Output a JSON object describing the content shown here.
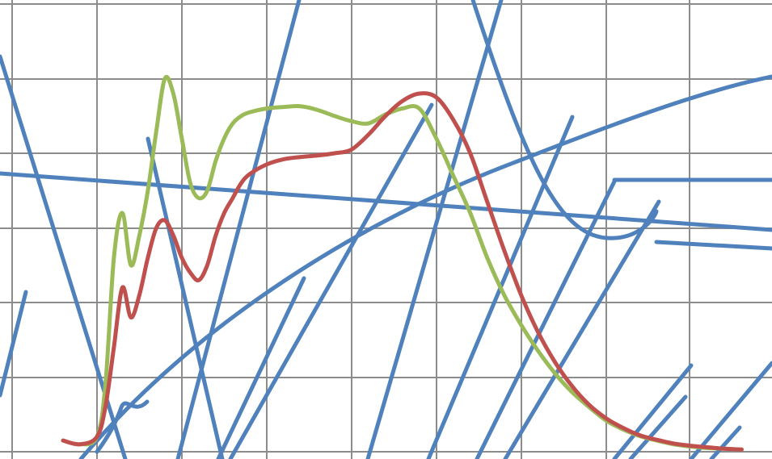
{
  "chart_data": {
    "type": "line",
    "grid": true,
    "legend": "none",
    "title": "",
    "xlabel": "",
    "ylabel": "",
    "xlim": [
      0,
      9.1
    ],
    "ylim": [
      0,
      6
    ],
    "colors": {
      "grid": "#8c8c8c",
      "green": "#9bbb59",
      "red": "#c0504d",
      "blue": "#4f81bd"
    },
    "series": [
      {
        "color": "#9bbb59",
        "x": [
          0.6,
          0.8,
          1.0,
          1.1,
          1.2,
          1.3,
          1.4,
          1.5,
          1.6,
          1.7,
          1.8,
          1.9,
          2.0,
          2.1,
          2.2,
          2.3,
          2.4,
          2.5,
          2.6,
          2.7,
          2.8,
          3.0,
          3.2,
          3.4,
          3.6,
          3.8,
          4.0,
          4.2,
          4.4,
          4.6,
          4.8,
          5.0,
          5.2,
          5.4,
          5.6,
          5.8,
          6.0,
          6.2,
          6.4,
          6.6,
          6.8,
          7.0,
          7.2,
          7.4,
          7.6,
          7.8,
          8.0,
          8.2,
          8.4,
          8.6
        ],
        "y": [
          0.15,
          0.1,
          0.2,
          0.9,
          2.6,
          3.2,
          2.5,
          2.9,
          3.5,
          4.3,
          5.0,
          4.8,
          4.2,
          3.6,
          3.4,
          3.5,
          3.9,
          4.2,
          4.4,
          4.5,
          4.55,
          4.6,
          4.62,
          4.63,
          4.58,
          4.5,
          4.43,
          4.4,
          4.52,
          4.6,
          4.6,
          4.2,
          3.7,
          3.2,
          2.6,
          2.1,
          1.7,
          1.35,
          1.05,
          0.8,
          0.6,
          0.42,
          0.3,
          0.21,
          0.15,
          0.1,
          0.07,
          0.05,
          0.04,
          0.03
        ]
      },
      {
        "color": "#c0504d",
        "x": [
          0.6,
          0.8,
          1.0,
          1.1,
          1.2,
          1.3,
          1.4,
          1.5,
          1.6,
          1.7,
          1.8,
          1.9,
          2.0,
          2.1,
          2.2,
          2.3,
          2.4,
          2.5,
          2.6,
          2.7,
          2.8,
          3.0,
          3.2,
          3.4,
          3.6,
          3.8,
          4.0,
          4.2,
          4.4,
          4.6,
          4.8,
          5.0,
          5.2,
          5.4,
          5.6,
          5.8,
          6.0,
          6.2,
          6.4,
          6.6,
          6.8,
          7.0,
          7.2,
          7.4,
          7.6,
          7.8,
          8.0,
          8.2,
          8.4,
          8.6
        ],
        "y": [
          0.15,
          0.1,
          0.2,
          0.6,
          1.4,
          2.2,
          1.8,
          2.1,
          2.6,
          3.0,
          3.1,
          2.9,
          2.6,
          2.4,
          2.3,
          2.5,
          2.9,
          3.2,
          3.4,
          3.6,
          3.72,
          3.85,
          3.92,
          3.95,
          3.97,
          4.0,
          4.05,
          4.25,
          4.5,
          4.7,
          4.8,
          4.75,
          4.45,
          4.0,
          3.35,
          2.7,
          2.1,
          1.6,
          1.2,
          0.88,
          0.63,
          0.45,
          0.32,
          0.22,
          0.16,
          0.11,
          0.08,
          0.06,
          0.04,
          0.03
        ]
      }
    ]
  }
}
